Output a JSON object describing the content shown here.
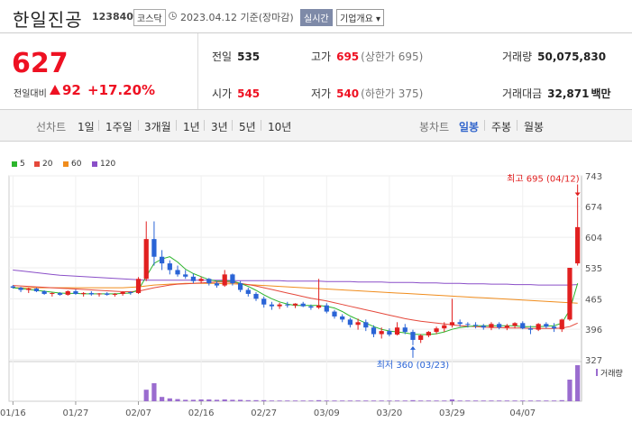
{
  "header": {
    "title": "한일진공",
    "code": "123840",
    "market": "코스닥",
    "date": "2023.04.12 기준(장마감)",
    "realtime": "실시간",
    "company_btn": "기업개요 ▾"
  },
  "summary": {
    "price": "627",
    "change_label": "전일대비",
    "change": "92",
    "change_rate": "+17.20%",
    "prev_label": "전일",
    "prev": "535",
    "high_label": "고가",
    "high": "695",
    "high_sub": "(상한가 695)",
    "volume_label": "거래량",
    "volume": "50,075,830",
    "open_label": "시가",
    "open": "545",
    "low_label": "저가",
    "low": "540",
    "low_sub": "(하한가 375)",
    "amount_label": "거래대금",
    "amount": "32,871",
    "amount_unit": "백만"
  },
  "tabs": {
    "line": "선차트",
    "d1": "1일",
    "w1": "1주일",
    "m3": "3개월",
    "y1": "1년",
    "y3": "3년",
    "y5": "5년",
    "y10": "10년",
    "candle": "봉차트",
    "daily": "일봉",
    "weekly": "주봉",
    "monthly": "월봉"
  },
  "legend": [
    {
      "label": "5",
      "color": "#2cb52c"
    },
    {
      "label": "20",
      "color": "#e5483b"
    },
    {
      "label": "60",
      "color": "#f08c1c"
    },
    {
      "label": "120",
      "color": "#8a4fc8"
    }
  ],
  "chart_data": {
    "type": "candlestick",
    "y_ticks": [
      "743",
      "674",
      "604",
      "535",
      "465",
      "396",
      "327"
    ],
    "x_ticks": [
      "01/16",
      "01/27",
      "02/07",
      "02/16",
      "02/27",
      "03/09",
      "03/20",
      "03/29",
      "04/07"
    ],
    "high_annotation": "최고 695 (04/12)",
    "low_annotation": "최저 360 (03/23)",
    "volume_label": "거래량",
    "ohlc": [
      [
        493,
        496,
        488,
        490
      ],
      [
        490,
        492,
        480,
        485
      ],
      [
        485,
        490,
        478,
        488
      ],
      [
        488,
        490,
        480,
        482
      ],
      [
        482,
        484,
        474,
        476
      ],
      [
        476,
        479,
        470,
        478
      ],
      [
        478,
        480,
        472,
        474
      ],
      [
        474,
        484,
        472,
        482
      ],
      [
        482,
        486,
        474,
        476
      ],
      [
        476,
        480,
        470,
        478
      ],
      [
        478,
        482,
        472,
        475
      ],
      [
        475,
        478,
        470,
        477
      ],
      [
        477,
        480,
        472,
        474
      ],
      [
        474,
        478,
        470,
        476
      ],
      [
        476,
        482,
        472,
        480
      ],
      [
        480,
        482,
        474,
        478
      ],
      [
        478,
        514,
        476,
        510
      ],
      [
        510,
        640,
        505,
        600
      ],
      [
        600,
        640,
        540,
        560
      ],
      [
        560,
        575,
        530,
        545
      ],
      [
        545,
        552,
        520,
        530
      ],
      [
        530,
        540,
        515,
        520
      ],
      [
        520,
        530,
        510,
        515
      ],
      [
        515,
        522,
        500,
        505
      ],
      [
        505,
        515,
        500,
        510
      ],
      [
        510,
        512,
        495,
        500
      ],
      [
        500,
        505,
        490,
        495
      ],
      [
        495,
        530,
        492,
        520
      ],
      [
        520,
        522,
        495,
        500
      ],
      [
        500,
        505,
        480,
        485
      ],
      [
        485,
        490,
        470,
        476
      ],
      [
        476,
        480,
        460,
        465
      ],
      [
        465,
        470,
        445,
        452
      ],
      [
        452,
        458,
        440,
        448
      ],
      [
        448,
        456,
        442,
        452
      ],
      [
        452,
        458,
        445,
        450
      ],
      [
        450,
        455,
        444,
        454
      ],
      [
        454,
        458,
        446,
        448
      ],
      [
        448,
        452,
        440,
        445
      ],
      [
        445,
        510,
        442,
        450
      ],
      [
        450,
        455,
        432,
        436
      ],
      [
        436,
        440,
        420,
        425
      ],
      [
        425,
        430,
        412,
        418
      ],
      [
        418,
        422,
        400,
        406
      ],
      [
        406,
        420,
        395,
        412
      ],
      [
        412,
        418,
        392,
        400
      ],
      [
        400,
        405,
        378,
        385
      ],
      [
        385,
        400,
        375,
        392
      ],
      [
        392,
        398,
        380,
        384
      ],
      [
        384,
        412,
        382,
        400
      ],
      [
        400,
        408,
        385,
        390
      ],
      [
        390,
        395,
        360,
        372
      ],
      [
        372,
        385,
        365,
        382
      ],
      [
        382,
        392,
        378,
        390
      ],
      [
        390,
        402,
        385,
        398
      ],
      [
        398,
        412,
        390,
        405
      ],
      [
        405,
        465,
        400,
        412
      ],
      [
        412,
        418,
        402,
        408
      ],
      [
        408,
        412,
        400,
        406
      ],
      [
        406,
        412,
        398,
        404
      ],
      [
        404,
        408,
        395,
        400
      ],
      [
        400,
        412,
        394,
        408
      ],
      [
        408,
        412,
        396,
        400
      ],
      [
        400,
        408,
        394,
        404
      ],
      [
        404,
        412,
        398,
        410
      ],
      [
        410,
        414,
        396,
        398
      ],
      [
        398,
        404,
        385,
        395
      ],
      [
        395,
        410,
        392,
        408
      ],
      [
        408,
        412,
        398,
        402
      ],
      [
        402,
        410,
        390,
        398
      ],
      [
        396,
        420,
        390,
        418
      ],
      [
        418,
        535,
        415,
        535
      ],
      [
        545,
        695,
        540,
        627
      ]
    ],
    "volume": [
      0,
      0,
      0,
      0,
      0,
      0,
      0,
      0,
      0,
      0,
      0,
      0,
      0,
      0,
      0,
      0,
      0,
      0.32,
      0.5,
      0.12,
      0.08,
      0.06,
      0.04,
      0.04,
      0.05,
      0.05,
      0.04,
      0.05,
      0.04,
      0.04,
      0.03,
      0.03,
      0.03,
      0.02,
      0.02,
      0.02,
      0.02,
      0.02,
      0.02,
      0.03,
      0.02,
      0.02,
      0.02,
      0.02,
      0.02,
      0.02,
      0.02,
      0.02,
      0.02,
      0.02,
      0.02,
      0.03,
      0.02,
      0.02,
      0.02,
      0.02,
      0.05,
      0.02,
      0.02,
      0.02,
      0.02,
      0.02,
      0.02,
      0.02,
      0.02,
      0.02,
      0.02,
      0.02,
      0.02,
      0.02,
      0.03,
      0.6,
      1.0
    ],
    "ma5": [
      490,
      488,
      486,
      484,
      482,
      480,
      478,
      477,
      477,
      476,
      476,
      476,
      476,
      476,
      477,
      478,
      485,
      515,
      545,
      555,
      560,
      548,
      532,
      522,
      515,
      508,
      505,
      505,
      505,
      500,
      493,
      484,
      474,
      465,
      458,
      453,
      450,
      450,
      450,
      450,
      448,
      444,
      436,
      426,
      418,
      410,
      402,
      396,
      392,
      390,
      388,
      385,
      384,
      384,
      386,
      390,
      396,
      400,
      402,
      404,
      404,
      404,
      404,
      404,
      404,
      402,
      402,
      402,
      403,
      404,
      410,
      440,
      500
    ],
    "ma20": [
      495,
      494,
      493,
      492,
      491,
      490,
      489,
      488,
      487,
      486,
      485,
      484,
      483,
      482,
      481,
      481,
      482,
      486,
      490,
      493,
      496,
      498,
      499,
      500,
      501,
      502,
      503,
      503,
      502,
      500,
      497,
      494,
      490,
      486,
      482,
      478,
      474,
      470,
      466,
      463,
      460,
      456,
      452,
      448,
      444,
      440,
      436,
      432,
      428,
      424,
      420,
      417,
      414,
      412,
      410,
      408,
      406,
      404,
      403,
      402,
      401,
      400,
      400,
      399,
      399,
      399,
      398,
      398,
      398,
      398,
      399,
      402,
      410
    ],
    "ma60": [
      490,
      490,
      490,
      490,
      490,
      490,
      490,
      490,
      490,
      490,
      490,
      490,
      490,
      490,
      490,
      491,
      492,
      494,
      496,
      497,
      498,
      499,
      500,
      500,
      500,
      500,
      500,
      499,
      499,
      498,
      497,
      496,
      495,
      494,
      493,
      492,
      491,
      490,
      489,
      488,
      487,
      486,
      485,
      484,
      483,
      482,
      481,
      480,
      479,
      478,
      477,
      476,
      475,
      474,
      473,
      472,
      471,
      470,
      469,
      468,
      467,
      466,
      465,
      464,
      463,
      462,
      461,
      460,
      459,
      458,
      457,
      456,
      455
    ],
    "ma120": [
      530,
      528,
      526,
      524,
      522,
      520,
      518,
      517,
      516,
      515,
      514,
      513,
      512,
      511,
      510,
      509,
      508,
      507,
      507,
      507,
      507,
      507,
      507,
      507,
      507,
      507,
      507,
      507,
      506,
      506,
      506,
      506,
      506,
      506,
      506,
      505,
      505,
      505,
      505,
      505,
      504,
      504,
      504,
      504,
      503,
      503,
      503,
      503,
      502,
      502,
      502,
      502,
      501,
      501,
      501,
      500,
      500,
      500,
      499,
      499,
      499,
      498,
      498,
      498,
      497,
      497,
      497,
      496,
      496,
      496,
      496,
      496,
      497
    ]
  }
}
